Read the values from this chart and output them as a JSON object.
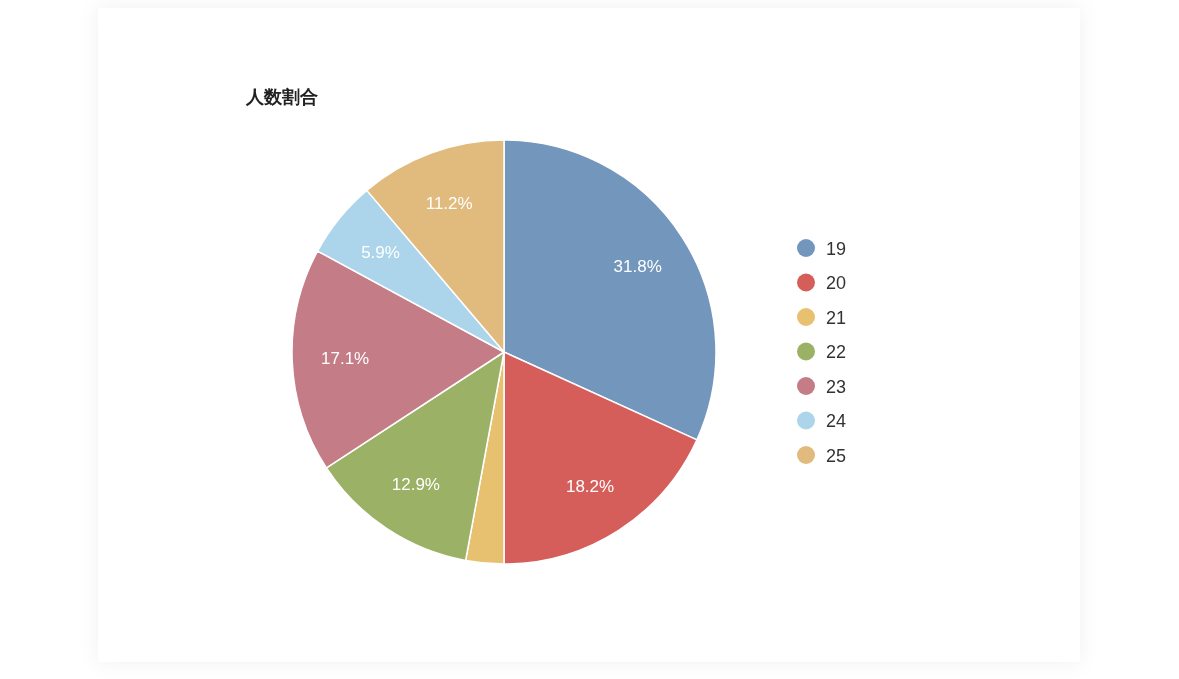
{
  "chart_data": {
    "type": "pie",
    "title": "人数割合",
    "categories": [
      "19",
      "20",
      "21",
      "22",
      "23",
      "24",
      "25"
    ],
    "values": [
      31.8,
      18.2,
      2.9,
      12.9,
      17.1,
      5.9,
      11.2
    ],
    "colors": [
      "#7396bd",
      "#d55e5b",
      "#e8c170",
      "#9bb165",
      "#c47c87",
      "#acd4ea",
      "#e1ba7e"
    ],
    "value_labels": [
      "31.8%",
      "18.2%",
      null,
      "12.9%",
      "17.1%",
      "5.9%",
      "11.2%"
    ],
    "legend": "right"
  }
}
